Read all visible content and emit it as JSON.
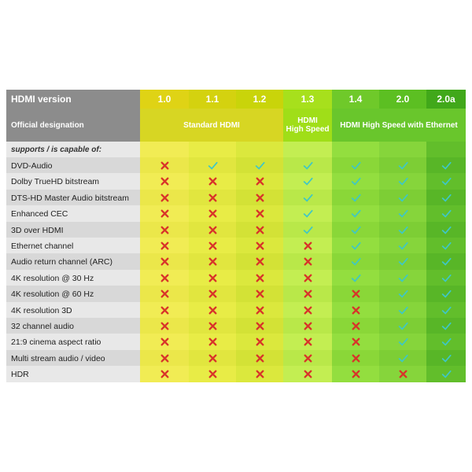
{
  "header": {
    "version_label": "HDMI version",
    "versions": [
      "1.0",
      "1.1",
      "1.2",
      "1.3",
      "1.4",
      "2.0",
      "2.0a"
    ]
  },
  "designation": {
    "label": "Official designation",
    "groups": [
      {
        "text": "Standard HDMI"
      },
      {
        "text": "HDMI\nHigh Speed"
      },
      {
        "text": "HDMI High Speed with Ethernet"
      }
    ]
  },
  "supports_label": "supports / is capable of:",
  "features": [
    {
      "name": "DVD-Audio",
      "support": [
        false,
        true,
        true,
        true,
        true,
        true,
        true
      ]
    },
    {
      "name": "Dolby TrueHD bitstream",
      "support": [
        false,
        false,
        false,
        true,
        true,
        true,
        true
      ]
    },
    {
      "name": "DTS-HD Master Audio bitstream",
      "support": [
        false,
        false,
        false,
        true,
        true,
        true,
        true
      ]
    },
    {
      "name": "Enhanced CEC",
      "support": [
        false,
        false,
        false,
        true,
        true,
        true,
        true
      ]
    },
    {
      "name": "3D over HDMI",
      "support": [
        false,
        false,
        false,
        true,
        true,
        true,
        true
      ]
    },
    {
      "name": "Ethernet channel",
      "support": [
        false,
        false,
        false,
        false,
        true,
        true,
        true
      ]
    },
    {
      "name": "Audio return channel (ARC)",
      "support": [
        false,
        false,
        false,
        false,
        true,
        true,
        true
      ]
    },
    {
      "name": "4K resolution @ 30 Hz",
      "support": [
        false,
        false,
        false,
        false,
        true,
        true,
        true
      ]
    },
    {
      "name": "4K resolution @ 60 Hz",
      "support": [
        false,
        false,
        false,
        false,
        false,
        true,
        true
      ]
    },
    {
      "name": "4K resolution 3D",
      "support": [
        false,
        false,
        false,
        false,
        false,
        true,
        true
      ]
    },
    {
      "name": "32 channel audio",
      "support": [
        false,
        false,
        false,
        false,
        false,
        true,
        true
      ]
    },
    {
      "name": "21:9 cinema aspect ratio",
      "support": [
        false,
        false,
        false,
        false,
        false,
        true,
        true
      ]
    },
    {
      "name": "Multi stream audio / video",
      "support": [
        false,
        false,
        false,
        false,
        false,
        true,
        true
      ]
    },
    {
      "name": "HDR",
      "support": [
        false,
        false,
        false,
        false,
        false,
        false,
        true
      ]
    }
  ],
  "colors": {
    "header_bg": "#8c8c8c",
    "label_light": "#e8e8e8",
    "label_dark": "#d8d8d8",
    "yes_color": "#3ec7c7",
    "no_color": "#d8342a",
    "col_header": [
      "#dfd315",
      "#d4d20f",
      "#c9d40a",
      "#a7e01c",
      "#6fc92a",
      "#5cbf22",
      "#41a81a"
    ],
    "col_sub": [
      "#d7d623",
      "#d7d623",
      "#d7d623",
      "#a0de18",
      "#69c62c",
      "#69c62c",
      "#69c62c"
    ],
    "col_body_a": [
      "#f1ec54",
      "#e8ec46",
      "#dbe83d",
      "#c3ee52",
      "#93de3f",
      "#86d53b",
      "#62be2b"
    ],
    "col_body_b": [
      "#ebe74a",
      "#e1e63f",
      "#d3e236",
      "#b9e849",
      "#8ad738",
      "#7dce35",
      "#58b627"
    ]
  }
}
